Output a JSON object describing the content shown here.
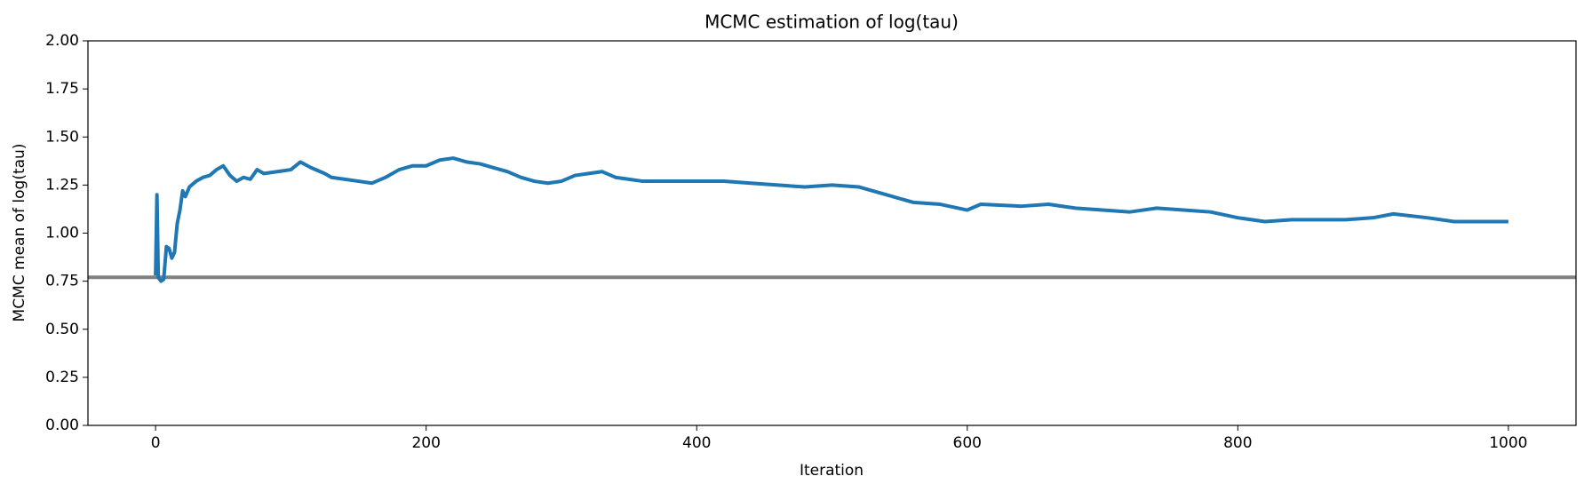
{
  "chart_data": {
    "type": "line",
    "title": "MCMC estimation of log(tau)",
    "xlabel": "Iteration",
    "ylabel": "MCMC mean of log(tau)",
    "x": [
      0,
      1,
      2,
      4,
      6,
      8,
      10,
      12,
      14,
      16,
      18,
      20,
      22,
      25,
      30,
      35,
      40,
      45,
      50,
      55,
      60,
      65,
      70,
      75,
      80,
      90,
      100,
      107,
      115,
      125,
      130,
      140,
      150,
      160,
      170,
      180,
      190,
      200,
      210,
      220,
      230,
      240,
      250,
      260,
      270,
      280,
      290,
      300,
      310,
      320,
      330,
      340,
      350,
      360,
      380,
      400,
      420,
      440,
      460,
      480,
      500,
      520,
      540,
      560,
      580,
      600,
      610,
      640,
      660,
      680,
      700,
      720,
      740,
      760,
      780,
      800,
      820,
      840,
      860,
      880,
      900,
      915,
      940,
      960,
      980,
      1000
    ],
    "series": [
      {
        "name": "MCMC mean",
        "color": "#1f77b4",
        "values": [
          0.78,
          1.2,
          0.77,
          0.75,
          0.76,
          0.93,
          0.92,
          0.87,
          0.9,
          1.05,
          1.12,
          1.22,
          1.19,
          1.24,
          1.27,
          1.29,
          1.3,
          1.33,
          1.35,
          1.3,
          1.27,
          1.29,
          1.28,
          1.33,
          1.31,
          1.32,
          1.33,
          1.37,
          1.34,
          1.31,
          1.29,
          1.28,
          1.27,
          1.26,
          1.29,
          1.33,
          1.35,
          1.35,
          1.38,
          1.39,
          1.37,
          1.36,
          1.34,
          1.32,
          1.29,
          1.27,
          1.26,
          1.27,
          1.3,
          1.31,
          1.32,
          1.29,
          1.28,
          1.27,
          1.27,
          1.27,
          1.27,
          1.26,
          1.25,
          1.24,
          1.25,
          1.24,
          1.2,
          1.16,
          1.15,
          1.12,
          1.15,
          1.14,
          1.15,
          1.13,
          1.12,
          1.11,
          1.13,
          1.12,
          1.11,
          1.08,
          1.06,
          1.07,
          1.07,
          1.07,
          1.08,
          1.1,
          1.08,
          1.06,
          1.06,
          1.06
        ]
      }
    ],
    "hline": {
      "value": 0.77,
      "color": "#808080"
    },
    "xlim": [
      -50,
      1050
    ],
    "ylim": [
      0,
      2
    ],
    "xticks": [
      0,
      200,
      400,
      600,
      800,
      1000
    ],
    "yticks": [
      {
        "value": 0,
        "label": "0.00"
      },
      {
        "value": 0.25,
        "label": "0.25"
      },
      {
        "value": 0.5,
        "label": "0.50"
      },
      {
        "value": 0.75,
        "label": "0.75"
      },
      {
        "value": 1,
        "label": "1.00"
      },
      {
        "value": 1.25,
        "label": "1.25"
      },
      {
        "value": 1.5,
        "label": "1.50"
      },
      {
        "value": 1.75,
        "label": "1.75"
      },
      {
        "value": 2,
        "label": "2.00"
      }
    ]
  }
}
